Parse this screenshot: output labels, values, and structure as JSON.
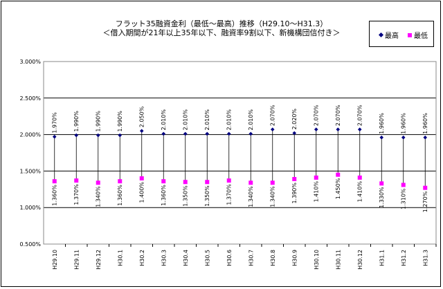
{
  "chart_data": {
    "type": "line",
    "title_line1": "フラット35融資金利（最低～最高）推移（H29.10～H31.3）",
    "title_line2": "＜借入期間が21年以上35年以下、融資率9割以下、新機構団信付き＞",
    "categories": [
      "H29.10",
      "H29.11",
      "H29.12",
      "H30.1",
      "H30.2",
      "H30.3",
      "H30.4",
      "H30.5",
      "H30.6",
      "H30.7",
      "H30.8",
      "H30.9",
      "H30.10",
      "H30.11",
      "H30.12",
      "H31.1",
      "H31.2",
      "H31.3"
    ],
    "series": [
      {
        "name": "最高",
        "marker": "diamond",
        "color": "#000080",
        "values": [
          1.97,
          1.99,
          1.99,
          1.99,
          2.05,
          2.01,
          2.01,
          2.01,
          2.01,
          2.01,
          2.07,
          2.02,
          2.07,
          2.07,
          2.07,
          1.96,
          1.96,
          1.96
        ],
        "labels": [
          "1.970%",
          "1.990%",
          "1.990%",
          "1.990%",
          "2.050%",
          "2.010%",
          "2.010%",
          "2.010%",
          "2.010%",
          "2.010%",
          "2.070%",
          "2.020%",
          "2.070%",
          "2.070%",
          "2.070%",
          "1.960%",
          "1.960%",
          "1.960%"
        ]
      },
      {
        "name": "最低",
        "marker": "square",
        "color": "#ff00ff",
        "values": [
          1.36,
          1.37,
          1.34,
          1.36,
          1.4,
          1.36,
          1.35,
          1.35,
          1.37,
          1.34,
          1.34,
          1.39,
          1.41,
          1.45,
          1.41,
          1.33,
          1.31,
          1.27
        ],
        "labels": [
          "1.360%",
          "1.370%",
          "1.340%",
          "1.360%",
          "1.400%",
          "1.360%",
          "1.350%",
          "1.350%",
          "1.370%",
          "1.340%",
          "1.340%",
          "1.390%",
          "1.410%",
          "1.450%",
          "1.410%",
          "1.330%",
          "1.310%",
          "1.270%"
        ]
      }
    ],
    "yticks": [
      3.0,
      2.5,
      2.0,
      1.5,
      1.0,
      0.5
    ],
    "ytick_labels": [
      "3.000%",
      "2.500%",
      "2.000%",
      "1.500%",
      "1.000%",
      "0.500%"
    ],
    "ylim": [
      0.5,
      3.0
    ],
    "grid": true,
    "legend_position": "top-right"
  }
}
